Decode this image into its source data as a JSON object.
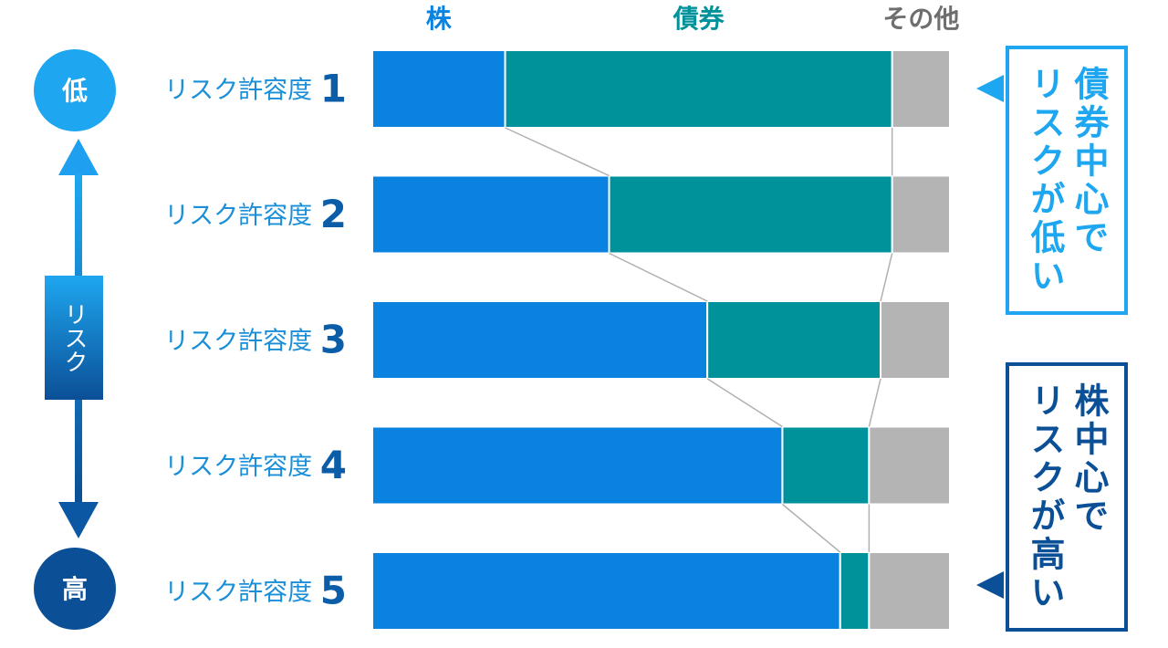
{
  "chart_data": {
    "type": "stacked_bar_horizontal",
    "categories": [
      "リスク許容度 1",
      "リスク許容度 2",
      "リスク許容度 3",
      "リスク許容度 4",
      "リスク許容度 5"
    ],
    "series": [
      {
        "name": "株",
        "color": "#0a82e0",
        "values": [
          23,
          41,
          58,
          71,
          81
        ]
      },
      {
        "name": "債券",
        "color": "#00929b",
        "values": [
          67,
          49,
          30,
          15,
          5
        ]
      },
      {
        "name": "その他",
        "color": "#b4b4b4",
        "values": [
          10,
          10,
          12,
          14,
          14
        ]
      }
    ],
    "xlim": [
      0,
      100
    ],
    "risk_axis": {
      "label": "リスク",
      "low": "低",
      "high": "高"
    },
    "annotations": [
      {
        "lines": [
          "債券中心で",
          "リスクが低い"
        ],
        "color": "#1ea7f0"
      },
      {
        "lines": [
          "株中心で",
          "リスクが高い"
        ],
        "color": "#0b4f96"
      }
    ]
  }
}
